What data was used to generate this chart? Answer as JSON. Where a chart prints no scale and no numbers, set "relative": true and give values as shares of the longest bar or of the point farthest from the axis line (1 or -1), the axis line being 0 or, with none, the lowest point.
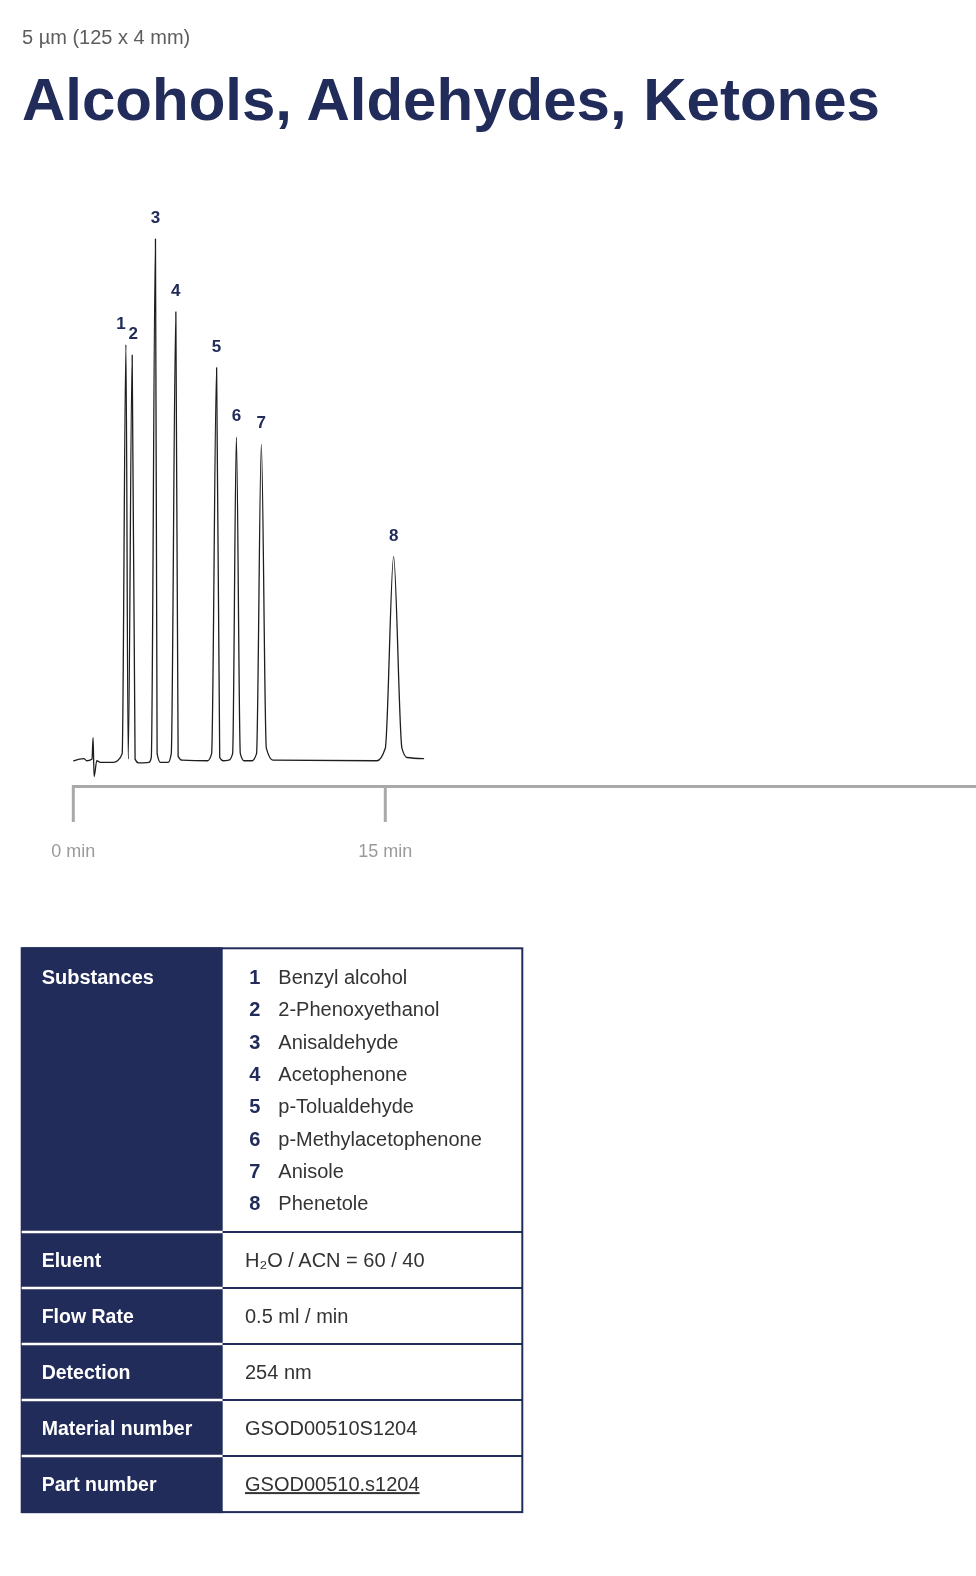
{
  "chart_data": {
    "type": "line",
    "title": "Alcohols, Aldehydes, Ketones",
    "subtitle": "5 µm (125 x 4 mm)",
    "relative": true,
    "x": [
      0.02,
      0.5,
      0.65,
      0.9,
      0.95,
      1.0,
      1.13,
      1.3,
      1.94,
      2.13,
      2.35,
      2.53,
      2.64,
      2.83,
      2.97,
      3.14,
      3.64,
      3.75,
      3.95,
      4.03,
      4.19,
      4.56,
      4.71,
      4.93,
      5.04,
      5.23,
      6.46,
      6.65,
      6.89,
      7.04,
      7.2,
      7.48,
      7.66,
      7.84,
      8.03,
      8.21,
      8.59,
      8.81,
      9.04,
      9.28,
      9.6,
      14.6,
      15.0,
      15.4,
      15.8,
      16.04,
      16.84
    ],
    "series": [
      {
        "color": "#1e1e1e",
        "values": [
          0.047,
          0.051,
          0.047,
          0.05,
          0.089,
          0.018,
          0.047,
          0.044,
          0.044,
          0.047,
          0.06,
          0.807,
          0.05,
          0.788,
          0.05,
          0.043,
          0.044,
          0.053,
          1,
          0.06,
          0.044,
          0.044,
          0.06,
          0.867,
          0.055,
          0.048,
          0.047,
          0.06,
          0.765,
          0.053,
          0.047,
          0.048,
          0.06,
          0.638,
          0.06,
          0.047,
          0.047,
          0.06,
          0.625,
          0.07,
          0.048,
          0.047,
          0.07,
          0.42,
          0.07,
          0.053,
          0.051
        ]
      }
    ],
    "xlim": [
      0,
      43.4
    ],
    "xticks": [
      {
        "value": 0,
        "label": "0 min"
      },
      {
        "value": 15,
        "label": "15 min"
      }
    ],
    "annotations": [
      {
        "text": "1",
        "x": 2.53,
        "y": 0.807
      },
      {
        "text": "2",
        "x": 2.83,
        "y": 0.788
      },
      {
        "text": "3",
        "x": 3.95,
        "y": 1
      },
      {
        "text": "4",
        "x": 4.93,
        "y": 0.867
      },
      {
        "text": "5",
        "x": 6.89,
        "y": 0.765
      },
      {
        "text": "6",
        "x": 7.84,
        "y": 0.638
      },
      {
        "text": "7",
        "x": 9.04,
        "y": 0.625
      },
      {
        "text": "8",
        "x": 15.4,
        "y": 0.42
      },
      "Substances",
      "Benzyl alcohol",
      "2-Phenoxyethanol",
      "Anisaldehyde",
      "Acetophenone",
      "p-Tolualdehyde",
      "p-Methylacetophenone",
      "Anisole",
      "Phenetole",
      "Eluent",
      "H₂O / ACN = 60 / 40",
      "Flow Rate",
      "0.5 ml / min",
      "Detection",
      "254 nm",
      "Material number",
      "GSOD00510S1204",
      "Part number",
      "GSOD00510.s1204"
    ]
  }
}
